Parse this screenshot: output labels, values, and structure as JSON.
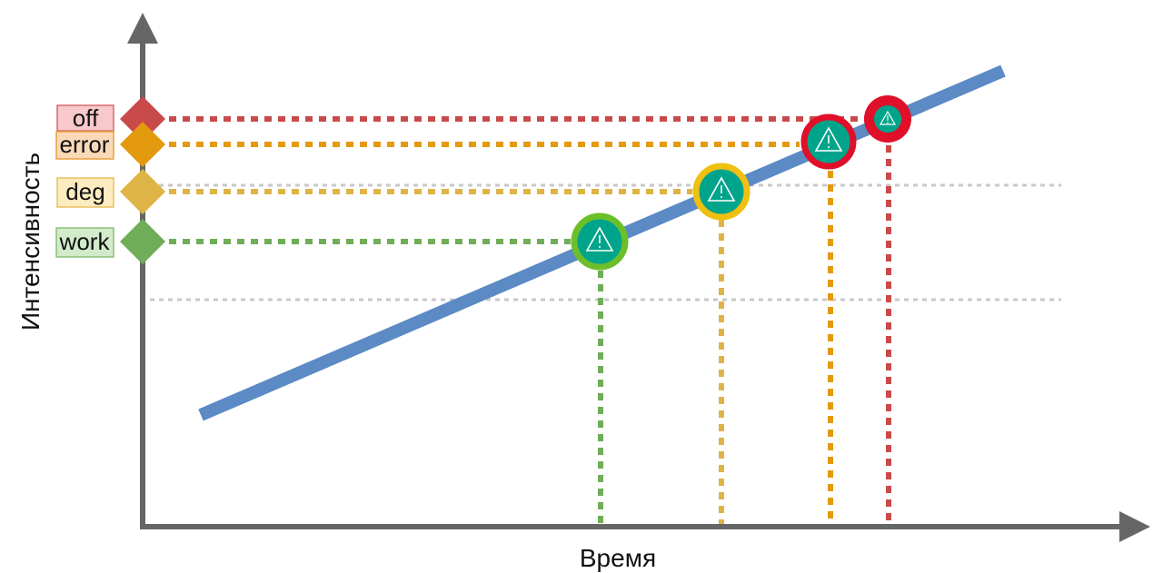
{
  "axes": {
    "x_label": "Время",
    "y_label": "Интенсивность"
  },
  "colors": {
    "axis": "#666666",
    "trend": "#5b8ac4",
    "grid": "#c8c8c8",
    "marker_fill": "#00a48a"
  },
  "levels": [
    {
      "id": "off",
      "label": "off",
      "color": "#c94a4a",
      "label_bg": "#f7c9cc",
      "label_border": "#d96a6a",
      "ring": "#e0102a"
    },
    {
      "id": "error",
      "label": "error",
      "color": "#e39a0e",
      "label_bg": "#fbd9b8",
      "label_border": "#e8a040",
      "ring": "#e0102a"
    },
    {
      "id": "deg",
      "label": "deg",
      "color": "#dfb446",
      "label_bg": "#fdecc0",
      "label_border": "#e8c060",
      "ring": "#f0c010"
    },
    {
      "id": "work",
      "label": "work",
      "color": "#6fad58",
      "label_bg": "#d2ebcb",
      "label_border": "#8cc07a",
      "ring": "#6cbf2a"
    }
  ],
  "markers": [
    {
      "level": "work",
      "icon": "warning-icon"
    },
    {
      "level": "deg",
      "icon": "warning-icon"
    },
    {
      "level": "error",
      "icon": "warning-icon"
    },
    {
      "level": "off",
      "icon": "warning-icon"
    }
  ],
  "threshold_lines": 2
}
